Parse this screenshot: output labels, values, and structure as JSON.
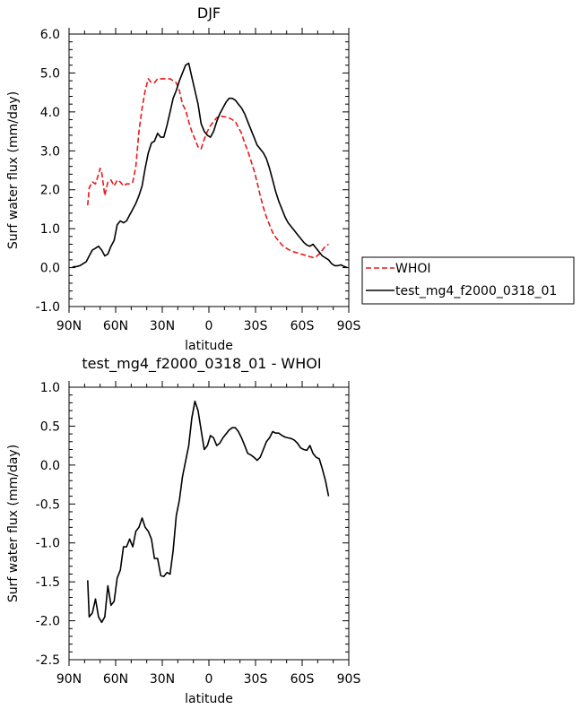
{
  "chart_data": [
    {
      "type": "line",
      "title": "DJF",
      "xlabel": "latitude",
      "ylabel": "Surf water flux (mm/day)",
      "xlim": [
        90,
        -90
      ],
      "ylim": [
        -1.0,
        6.0
      ],
      "xticks": [
        90,
        60,
        30,
        0,
        -30,
        -60,
        -90
      ],
      "xtick_labels": [
        "90N",
        "60N",
        "30N",
        "0",
        "30S",
        "60S",
        "90S"
      ],
      "yticks": [
        -1.0,
        0.0,
        1.0,
        2.0,
        3.0,
        4.0,
        5.0,
        6.0
      ],
      "ytick_labels": [
        "-1.0",
        "0.0",
        "1.0",
        "2.0",
        "3.0",
        "4.0",
        "5.0",
        "6.0"
      ],
      "grid": false,
      "legend_position": "right",
      "series": [
        {
          "name": "WHOI",
          "color": "#e8191c",
          "dash": "dashed",
          "x": [
            78,
            77,
            75,
            73,
            71,
            70,
            69,
            67,
            65,
            63,
            61,
            59,
            57,
            55,
            53,
            51,
            49,
            47,
            45,
            43,
            41,
            39,
            37,
            35,
            33,
            31,
            29,
            27,
            25,
            23,
            21,
            19,
            17,
            15,
            13,
            11,
            9,
            7,
            5,
            3,
            1,
            -1,
            -3,
            -5,
            -7,
            -9,
            -11,
            -13,
            -15,
            -17,
            -19,
            -21,
            -23,
            -25,
            -27,
            -29,
            -31,
            -33,
            -35,
            -37,
            -39,
            -41,
            -43,
            -45,
            -47,
            -49,
            -51,
            -53,
            -55,
            -57,
            -59,
            -61,
            -63,
            -65,
            -67,
            -69,
            -71,
            -73,
            -75,
            -77
          ],
          "values": [
            1.6,
            2.05,
            2.2,
            2.15,
            2.4,
            2.55,
            2.45,
            1.85,
            2.2,
            2.25,
            2.1,
            2.25,
            2.2,
            2.1,
            2.15,
            2.15,
            2.2,
            2.6,
            3.5,
            4.1,
            4.55,
            4.85,
            4.75,
            4.75,
            4.85,
            4.85,
            4.85,
            4.85,
            4.85,
            4.8,
            4.75,
            4.55,
            4.2,
            4.05,
            3.75,
            3.5,
            3.3,
            3.1,
            3.05,
            3.3,
            3.5,
            3.65,
            3.75,
            3.85,
            3.9,
            3.88,
            3.87,
            3.85,
            3.8,
            3.75,
            3.6,
            3.45,
            3.2,
            3.0,
            2.75,
            2.5,
            2.2,
            1.85,
            1.55,
            1.3,
            1.1,
            0.9,
            0.78,
            0.68,
            0.58,
            0.52,
            0.47,
            0.43,
            0.4,
            0.38,
            0.35,
            0.33,
            0.3,
            0.28,
            0.26,
            0.28,
            0.35,
            0.45,
            0.55,
            0.6
          ]
        },
        {
          "name": "test_mg4_f2000_0318_01",
          "color": "#000000",
          "dash": "solid",
          "x": [
            88,
            87,
            85,
            83,
            81,
            79,
            77,
            75,
            73,
            71,
            69,
            67,
            65,
            63,
            61,
            59,
            57,
            55,
            53,
            51,
            49,
            47,
            45,
            43,
            41,
            39,
            37,
            35,
            33,
            31,
            29,
            27,
            25,
            23,
            21,
            19,
            17,
            15,
            13,
            11,
            9,
            7,
            5,
            3,
            1,
            -1,
            -3,
            -5,
            -7,
            -9,
            -11,
            -13,
            -15,
            -17,
            -19,
            -21,
            -23,
            -25,
            -27,
            -29,
            -31,
            -33,
            -35,
            -37,
            -39,
            -41,
            -43,
            -45,
            -47,
            -49,
            -51,
            -53,
            -55,
            -57,
            -59,
            -61,
            -63,
            -65,
            -67,
            -69,
            -71,
            -73,
            -75,
            -77,
            -79,
            -81,
            -83,
            -85,
            -87,
            -89
          ],
          "values": [
            0.0,
            0.02,
            0.03,
            0.05,
            0.1,
            0.15,
            0.3,
            0.45,
            0.5,
            0.55,
            0.45,
            0.3,
            0.35,
            0.55,
            0.7,
            1.1,
            1.2,
            1.15,
            1.2,
            1.35,
            1.5,
            1.65,
            1.85,
            2.1,
            2.55,
            2.95,
            3.2,
            3.25,
            3.45,
            3.35,
            3.35,
            3.65,
            4.0,
            4.35,
            4.55,
            4.8,
            5.0,
            5.2,
            5.25,
            4.9,
            4.55,
            4.2,
            3.7,
            3.5,
            3.4,
            3.35,
            3.5,
            3.75,
            3.95,
            4.1,
            4.25,
            4.35,
            4.35,
            4.3,
            4.2,
            4.1,
            3.95,
            3.75,
            3.55,
            3.35,
            3.15,
            3.05,
            2.95,
            2.8,
            2.55,
            2.25,
            1.95,
            1.7,
            1.5,
            1.3,
            1.15,
            1.05,
            0.95,
            0.85,
            0.75,
            0.65,
            0.58,
            0.55,
            0.6,
            0.5,
            0.4,
            0.3,
            0.25,
            0.2,
            0.1,
            0.05,
            0.05,
            0.07,
            0.03,
            0.0
          ]
        }
      ]
    },
    {
      "type": "line",
      "title": "test_mg4_f2000_0318_01 - WHOI",
      "xlabel": "latitude",
      "ylabel": "Surf water flux (mm/day)",
      "xlim": [
        90,
        -90
      ],
      "ylim": [
        -2.5,
        1.0
      ],
      "xticks": [
        90,
        60,
        30,
        0,
        -30,
        -60,
        -90
      ],
      "xtick_labels": [
        "90N",
        "60N",
        "30N",
        "0",
        "30S",
        "60S",
        "90S"
      ],
      "yticks": [
        -2.5,
        -2.0,
        -1.5,
        -1.0,
        -0.5,
        0.0,
        0.5,
        1.0
      ],
      "ytick_labels": [
        "-2.5",
        "-2.0",
        "-1.5",
        "-1.0",
        "-0.5",
        "0.0",
        "0.5",
        "1.0"
      ],
      "grid": false,
      "series": [
        {
          "color": "#000000",
          "dash": "solid",
          "x": [
            78,
            77,
            75,
            73,
            71,
            69,
            67,
            65,
            63,
            61,
            59,
            57,
            55,
            53,
            51,
            49,
            47,
            45,
            43,
            41,
            39,
            37,
            35,
            33,
            31,
            29,
            27,
            25,
            23,
            21,
            19,
            17,
            15,
            13,
            11,
            9,
            7,
            5,
            3,
            1,
            -1,
            -3,
            -5,
            -7,
            -9,
            -11,
            -13,
            -15,
            -17,
            -19,
            -21,
            -23,
            -25,
            -27,
            -29,
            -31,
            -33,
            -35,
            -37,
            -39,
            -41,
            -43,
            -45,
            -47,
            -49,
            -51,
            -53,
            -55,
            -57,
            -59,
            -61,
            -63,
            -65,
            -67,
            -69,
            -71,
            -73,
            -75,
            -77
          ],
          "values": [
            -1.48,
            -1.95,
            -1.9,
            -1.72,
            -1.95,
            -2.02,
            -1.95,
            -1.55,
            -1.8,
            -1.75,
            -1.45,
            -1.35,
            -1.05,
            -1.05,
            -0.95,
            -1.05,
            -0.85,
            -0.8,
            -0.68,
            -0.8,
            -0.85,
            -0.95,
            -1.2,
            -1.2,
            -1.42,
            -1.43,
            -1.38,
            -1.4,
            -1.1,
            -0.65,
            -0.45,
            -0.15,
            0.05,
            0.25,
            0.6,
            0.82,
            0.7,
            0.45,
            0.2,
            0.25,
            0.38,
            0.35,
            0.25,
            0.28,
            0.35,
            0.4,
            0.45,
            0.48,
            0.48,
            0.43,
            0.35,
            0.25,
            0.15,
            0.13,
            0.1,
            0.06,
            0.1,
            0.2,
            0.3,
            0.35,
            0.43,
            0.41,
            0.41,
            0.38,
            0.36,
            0.35,
            0.34,
            0.32,
            0.28,
            0.22,
            0.2,
            0.19,
            0.25,
            0.15,
            0.1,
            0.08,
            -0.05,
            -0.2,
            -0.4
          ]
        }
      ]
    }
  ]
}
